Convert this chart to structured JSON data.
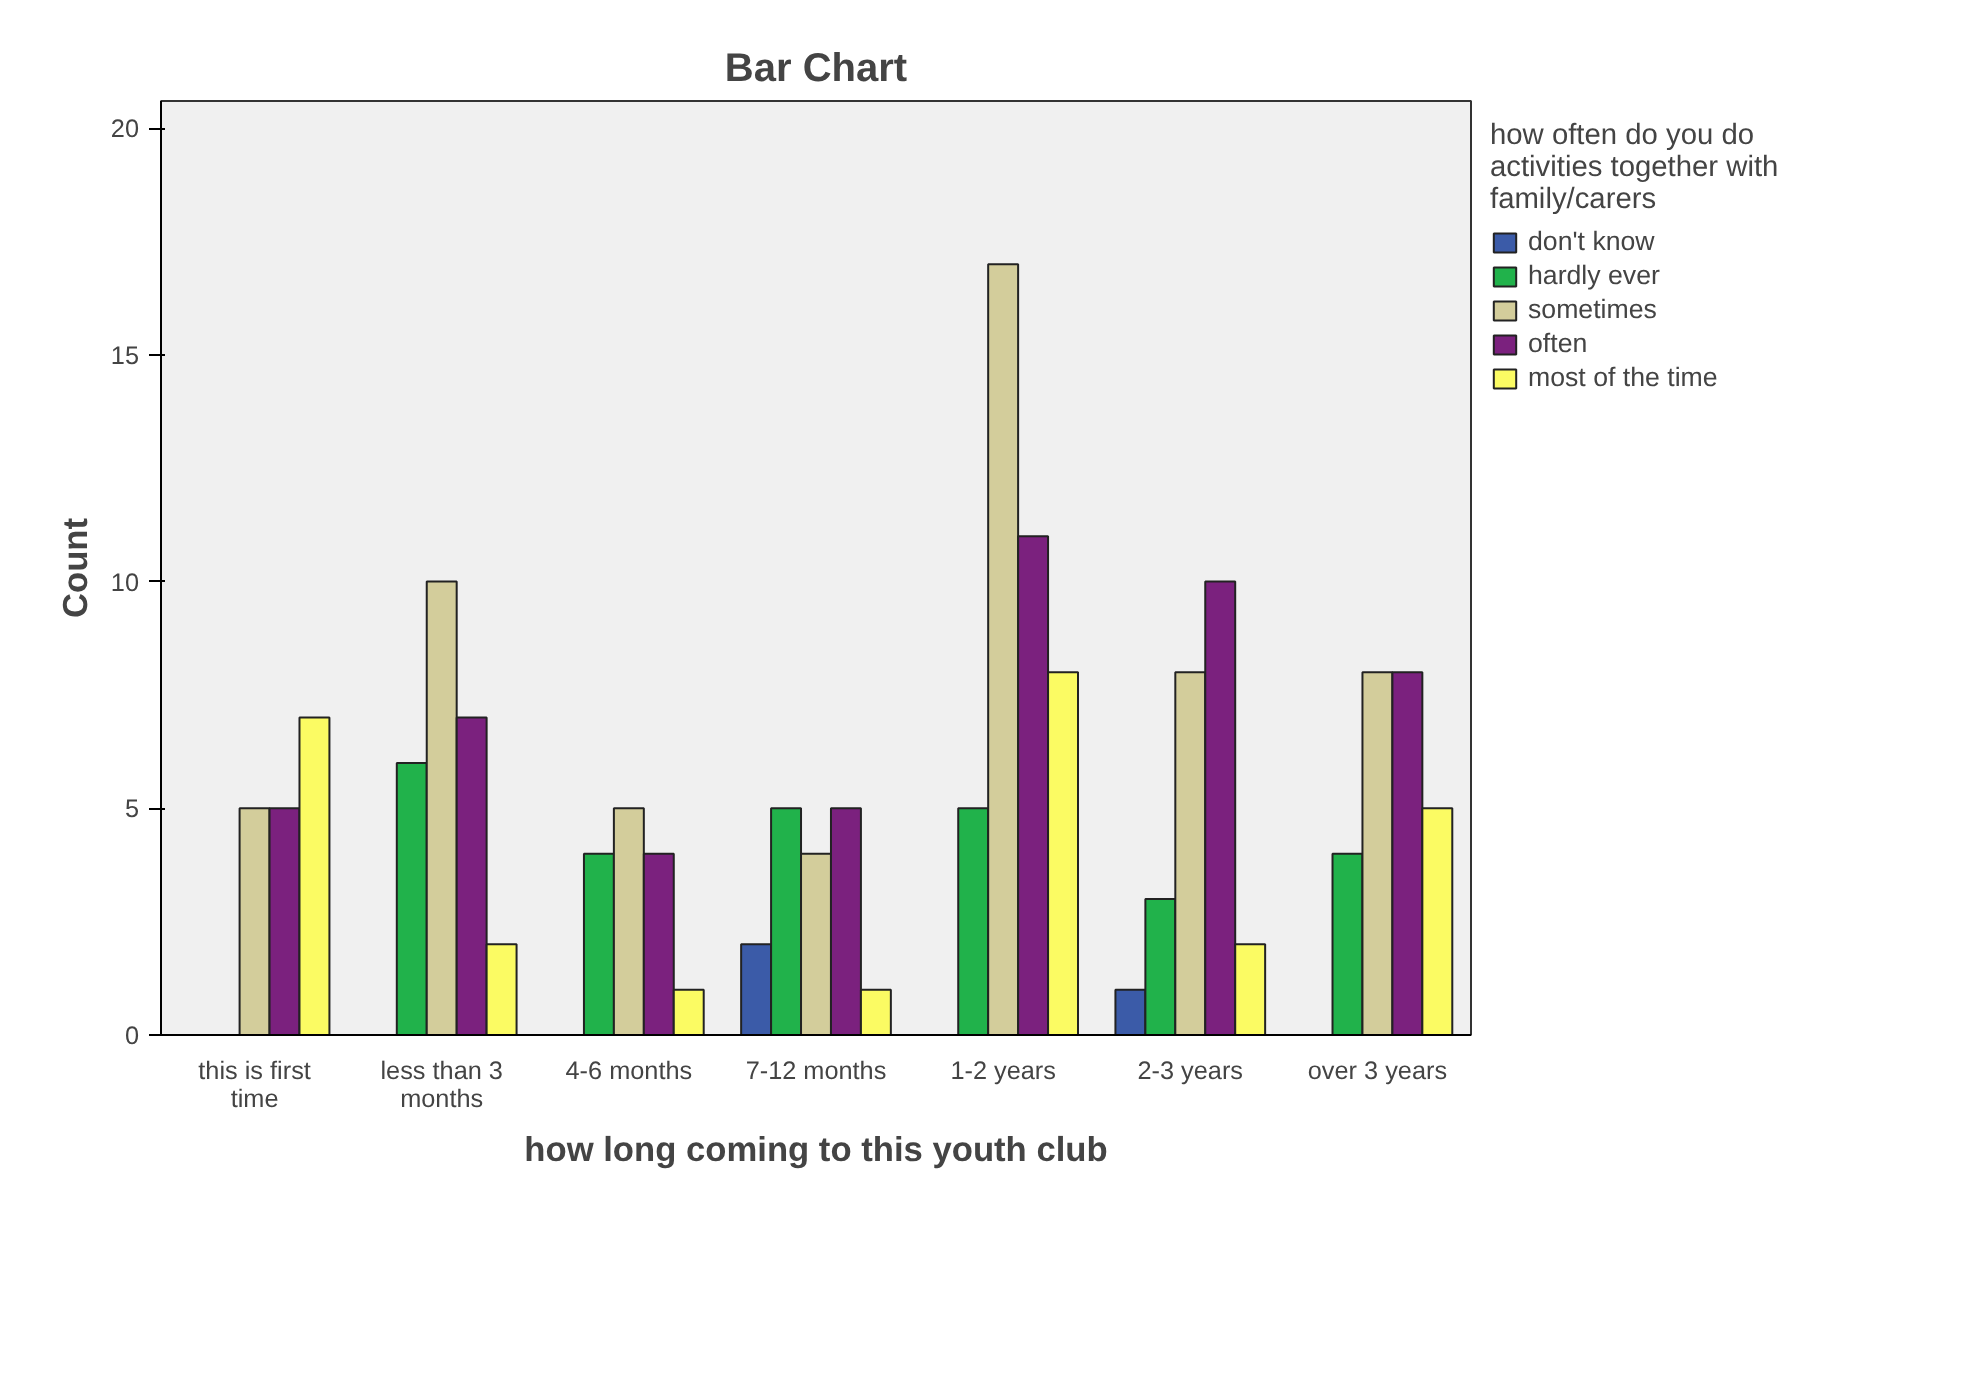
{
  "chart_data": {
    "type": "bar",
    "title": "Bar Chart",
    "xlabel": "how long coming to this youth club",
    "ylabel": "Count",
    "categories": [
      "this is first time",
      "less than 3 months",
      "4-6 months",
      "7-12 months",
      "1-2 years",
      "2-3 years",
      "over 3 years"
    ],
    "legend_title": "how often do you do activities together with family/carers",
    "series": [
      {
        "name": "don't know",
        "color": "#3b5ba8",
        "values": [
          null,
          null,
          null,
          2,
          null,
          1,
          null
        ]
      },
      {
        "name": "hardly ever",
        "color": "#21b24b",
        "values": [
          null,
          6,
          4,
          5,
          5,
          3,
          4
        ]
      },
      {
        "name": "sometimes",
        "color": "#d3cd9b",
        "values": [
          5,
          10,
          5,
          4,
          17,
          8,
          8
        ]
      },
      {
        "name": "often",
        "color": "#7b217e",
        "values": [
          5,
          7,
          4,
          5,
          11,
          10,
          8
        ]
      },
      {
        "name": "most of the time",
        "color": "#fbfb63",
        "values": [
          7,
          2,
          1,
          1,
          8,
          2,
          5
        ]
      }
    ],
    "ylim": [
      0,
      20.6
    ],
    "yticks": [
      0,
      5,
      10,
      15,
      20
    ],
    "grid": false,
    "legend": "right"
  }
}
